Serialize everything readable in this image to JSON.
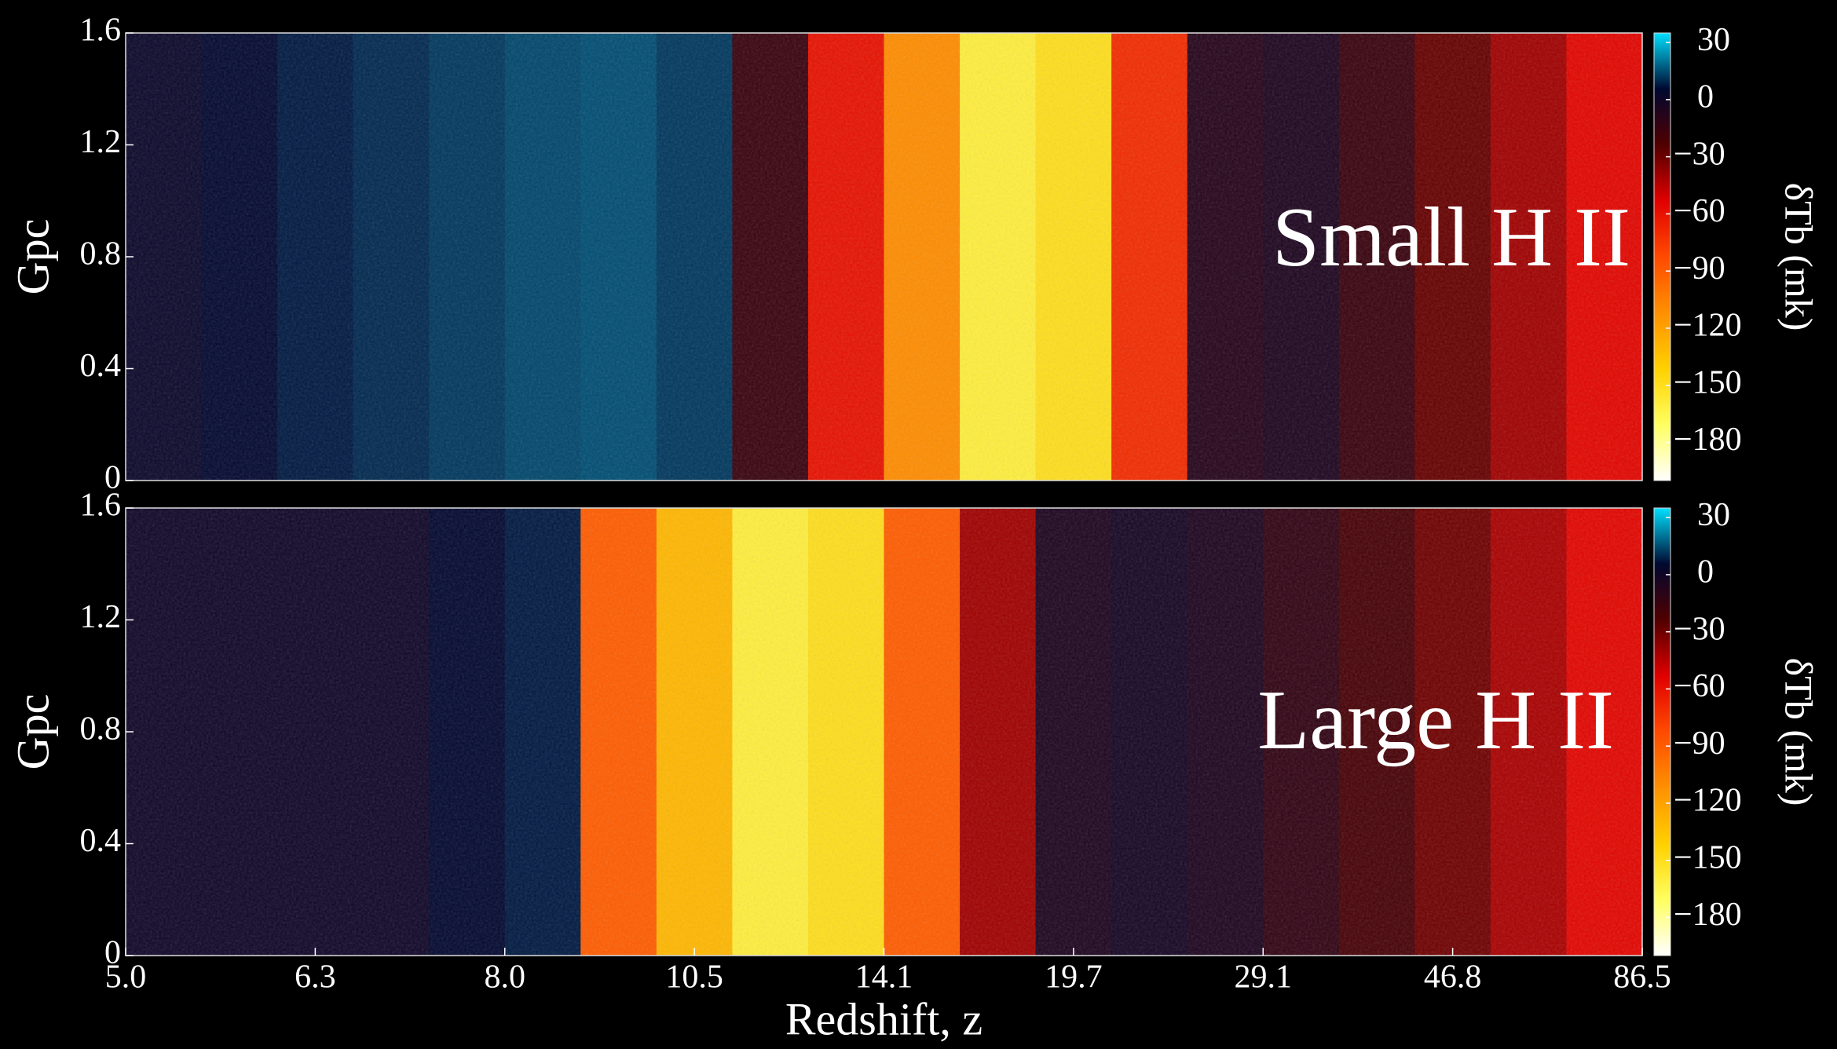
{
  "chart_data": [
    {
      "type": "heatmap",
      "annotation": "Small H II",
      "ylabel": "Gpc",
      "ylim": [
        0,
        1.6
      ],
      "yticks": [
        0,
        0.4,
        0.8,
        1.2,
        1.6
      ],
      "values": [
        2,
        5,
        8,
        10,
        12,
        14,
        15,
        12,
        -15,
        -60,
        -110,
        -160,
        -150,
        -70,
        -8,
        -5,
        -15,
        -28,
        -40,
        -55
      ],
      "clim": [
        -200,
        35
      ],
      "cticks": [
        30,
        0,
        {
          "value": -30,
          "label": "−30"
        },
        {
          "value": -60,
          "label": "−60"
        },
        {
          "value": -90,
          "label": "−90"
        },
        {
          "value": -120,
          "label": "−120"
        },
        {
          "value": -150,
          "label": "−150"
        },
        {
          "value": -180,
          "label": "−180"
        }
      ],
      "colorbar_label": "δTb (mk)",
      "colormap": [
        "#ffffff",
        "#ffff60",
        "#ffd000",
        "#ff9000",
        "#ff4a00",
        "#e00000",
        "#500000",
        "#000830",
        "#00e0ff"
      ]
    },
    {
      "type": "heatmap",
      "annotation": "Large H II",
      "ylabel": "Gpc",
      "xlabel": "Redshift, z",
      "xtick_labels": [
        "5.0",
        "6.3",
        "8.0",
        "10.5",
        "14.1",
        "19.7",
        "29.1",
        "46.8",
        "86.5"
      ],
      "ylim": [
        0,
        1.6
      ],
      "yticks": [
        0,
        0.4,
        0.8,
        1.2,
        1.6
      ],
      "values": [
        0,
        0,
        0,
        0,
        5,
        8,
        -90,
        -130,
        -160,
        -150,
        -90,
        -40,
        -5,
        -2,
        -5,
        -12,
        -20,
        -30,
        -42,
        -55
      ],
      "clim": [
        -200,
        35
      ],
      "cticks": [
        30,
        0,
        {
          "value": -30,
          "label": "−30"
        },
        {
          "value": -60,
          "label": "−60"
        },
        {
          "value": -90,
          "label": "−90"
        },
        {
          "value": -120,
          "label": "−120"
        },
        {
          "value": -150,
          "label": "−150"
        },
        {
          "value": -180,
          "label": "−180"
        }
      ],
      "colorbar_label": "δTb (mk)",
      "colormap": [
        "#ffffff",
        "#ffff60",
        "#ffd000",
        "#ff9000",
        "#ff4a00",
        "#e00000",
        "#500000",
        "#000830",
        "#00e0ff"
      ]
    }
  ]
}
